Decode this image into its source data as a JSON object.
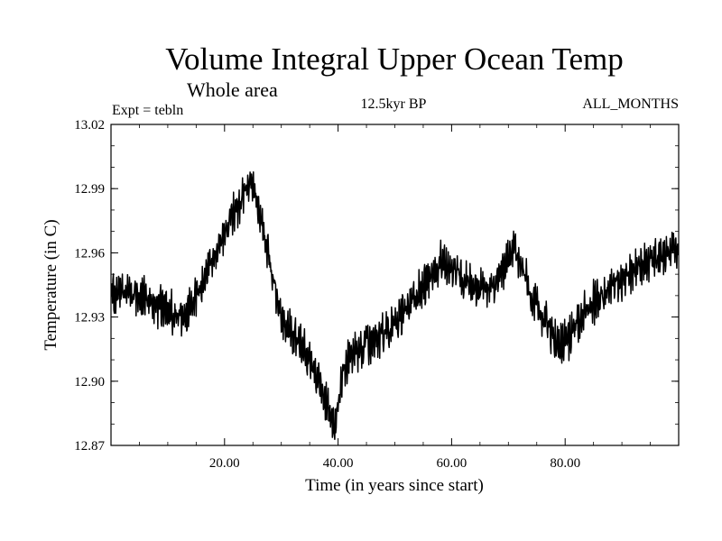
{
  "chart_data": {
    "type": "line",
    "title": "Volume Integral Upper Ocean Temp",
    "subtitle": "Whole area",
    "annotations": {
      "left": "Expt = tebln",
      "center": "12.5kyr BP",
      "right": "ALL_MONTHS"
    },
    "xlabel": "Time (in years since start)",
    "ylabel": "Temperature (in C)",
    "xlim": [
      0,
      100
    ],
    "ylim": [
      12.87,
      13.02
    ],
    "xticks": [
      20,
      40,
      60,
      80
    ],
    "xtick_labels": [
      "20.00",
      "40.00",
      "60.00",
      "80.00"
    ],
    "yticks": [
      12.87,
      12.9,
      12.93,
      12.96,
      12.99,
      13.02
    ],
    "ytick_labels": [
      "12.87",
      "12.90",
      "12.93",
      "12.96",
      "12.99",
      "13.02"
    ],
    "grid": false,
    "series": [
      {
        "name": "Volume integral upper ocean temperature",
        "trend": {
          "x": [
            0,
            3,
            6,
            10,
            13,
            16,
            19,
            21,
            23,
            24.5,
            26,
            28,
            30,
            33,
            36,
            38,
            39.5,
            40.5,
            42,
            45,
            48,
            51,
            55,
            58,
            61,
            64,
            67,
            69,
            71,
            73,
            75,
            77,
            79,
            81,
            84,
            87,
            90,
            93,
            96,
            99
          ],
          "y": [
            12.94,
            12.941,
            12.939,
            12.933,
            12.929,
            12.945,
            12.962,
            12.975,
            12.985,
            12.993,
            12.98,
            12.955,
            12.928,
            12.92,
            12.905,
            12.89,
            12.879,
            12.9,
            12.912,
            12.918,
            12.922,
            12.93,
            12.944,
            12.955,
            12.951,
            12.944,
            12.943,
            12.951,
            12.962,
            12.948,
            12.934,
            12.925,
            12.917,
            12.921,
            12.934,
            12.942,
            12.948,
            12.953,
            12.958,
            12.96
          ]
        },
        "variability_amplitude": 0.009,
        "samples_per_year": 12
      }
    ]
  }
}
